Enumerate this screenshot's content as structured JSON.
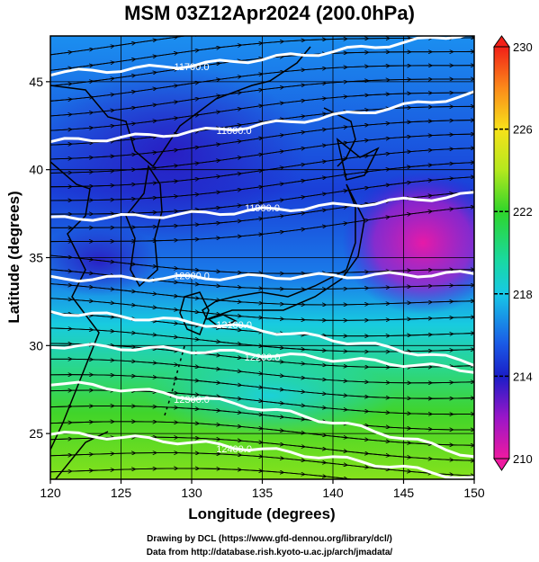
{
  "title": "MSM 03Z12Apr2024 (200.0hPa)",
  "chart_data": {
    "type": "heatmap",
    "title": "MSM 03Z12Apr2024 (200.0hPa)",
    "xlabel": "Longitude (degrees)",
    "ylabel": "Latitude  (degrees)",
    "xlim": [
      120,
      150
    ],
    "ylim": [
      22.4,
      47.6
    ],
    "x_ticks": [
      "120",
      "125",
      "130",
      "135",
      "140",
      "145",
      "150"
    ],
    "y_ticks": [
      "25",
      "30",
      "35",
      "40",
      "45"
    ],
    "colorbar": {
      "min": 210,
      "max": 230,
      "ticks": [
        "230",
        "226",
        "222",
        "218",
        "214",
        "210"
      ]
    },
    "contours": [
      {
        "label": "11700.0",
        "lat_at_120": 45.5,
        "lat_at_150": 47.8
      },
      {
        "label": "11800.0",
        "lat_at_120": 41.6,
        "lat_at_150": 44.3
      },
      {
        "label": "11900.0",
        "lat_at_120": 37.2,
        "lat_at_150": 38.6
      },
      {
        "label": "12000.0",
        "lat_at_120": 33.8,
        "lat_at_150": 34.1
      },
      {
        "label": "12100.0",
        "lat_at_120": 31.9,
        "lat_at_150": 29.0
      },
      {
        "label": "12200.0",
        "lat_at_120": 30.0,
        "lat_at_150": 28.6
      },
      {
        "label": "12300.0",
        "lat_at_120": 27.9,
        "lat_at_150": 23.7
      },
      {
        "label": "12400.0",
        "lat_at_120": 25.0,
        "lat_at_150": 22.4
      }
    ],
    "grid": true
  },
  "credits": {
    "line1": "Drawing by DCL (https://www.gfd-dennou.org/library/dcl/)",
    "line2": "Data from http://database.rish.kyoto-u.ac.jp/arch/jmadata/"
  }
}
